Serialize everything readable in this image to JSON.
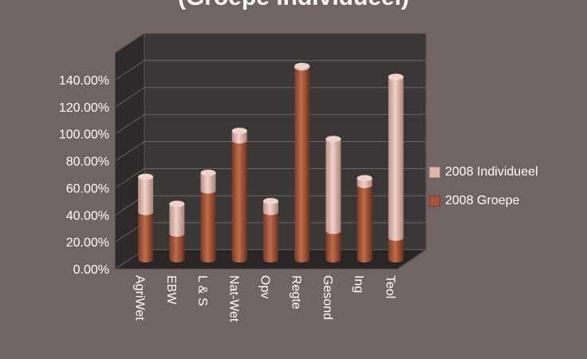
{
  "chart_data": {
    "type": "bar",
    "title": "(Groepe Individueel)",
    "categories": [
      "AgriWet",
      "EBW",
      "L & S",
      "Nat-Wet",
      "Opv",
      "Regte",
      "Gesond",
      "Ing",
      "Teol"
    ],
    "series": [
      {
        "name": "2008 Groepe",
        "values": [
          0.35,
          0.19,
          0.51,
          0.88,
          0.35,
          1.42,
          0.21,
          0.55,
          0.16
        ],
        "color": "#a5563a"
      },
      {
        "name": "2008 Individueel",
        "values": [
          0.26,
          0.22,
          0.13,
          0.07,
          0.08,
          0.01,
          0.68,
          0.05,
          1.19
        ],
        "color": "#e1b7ac"
      }
    ],
    "stacked": true,
    "yticks": [
      "0.00%",
      "20.00%",
      "40.00%",
      "60.00%",
      "80.00%",
      "100.00%",
      "120.00%",
      "140.00%"
    ],
    "ylim": [
      0,
      1.6
    ],
    "grid": true,
    "legend_position": "right",
    "style": "3d-cylinder"
  }
}
